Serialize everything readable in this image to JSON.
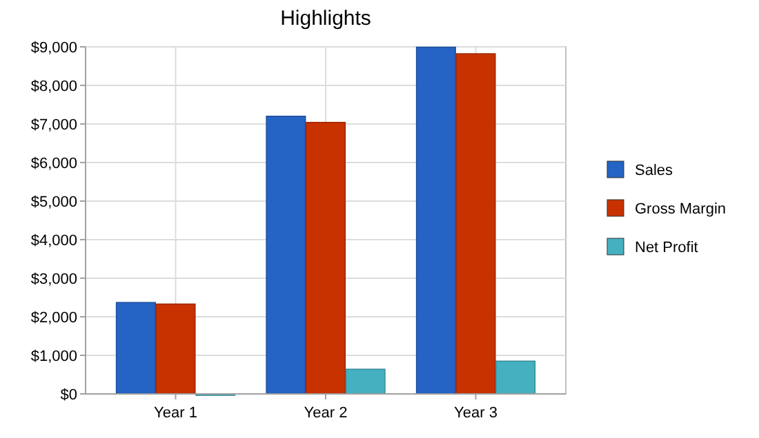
{
  "chart_data": {
    "type": "bar",
    "title": "Highlights",
    "categories": [
      "Year 1",
      "Year 2",
      "Year 3"
    ],
    "series": [
      {
        "name": "Sales",
        "color": "#2563c4",
        "values": [
          2370,
          7200,
          8990
        ]
      },
      {
        "name": "Gross Margin",
        "color": "#c83200",
        "values": [
          2330,
          7040,
          8820
        ]
      },
      {
        "name": "Net Profit",
        "color": "#44b0c0",
        "values": [
          0,
          640,
          850
        ]
      }
    ],
    "ylim": [
      0,
      9000
    ],
    "yticks": [
      {
        "value": 0,
        "label": "$0"
      },
      {
        "value": 1000,
        "label": "$1,000"
      },
      {
        "value": 2000,
        "label": "$2,000"
      },
      {
        "value": 3000,
        "label": "$3,000"
      },
      {
        "value": 4000,
        "label": "$4,000"
      },
      {
        "value": 5000,
        "label": "$5,000"
      },
      {
        "value": 6000,
        "label": "$6,000"
      },
      {
        "value": 7000,
        "label": "$7,000"
      },
      {
        "value": 8000,
        "label": "$8,000"
      },
      {
        "value": 9000,
        "label": "$9,000"
      }
    ],
    "grid": true,
    "legend": "right"
  }
}
